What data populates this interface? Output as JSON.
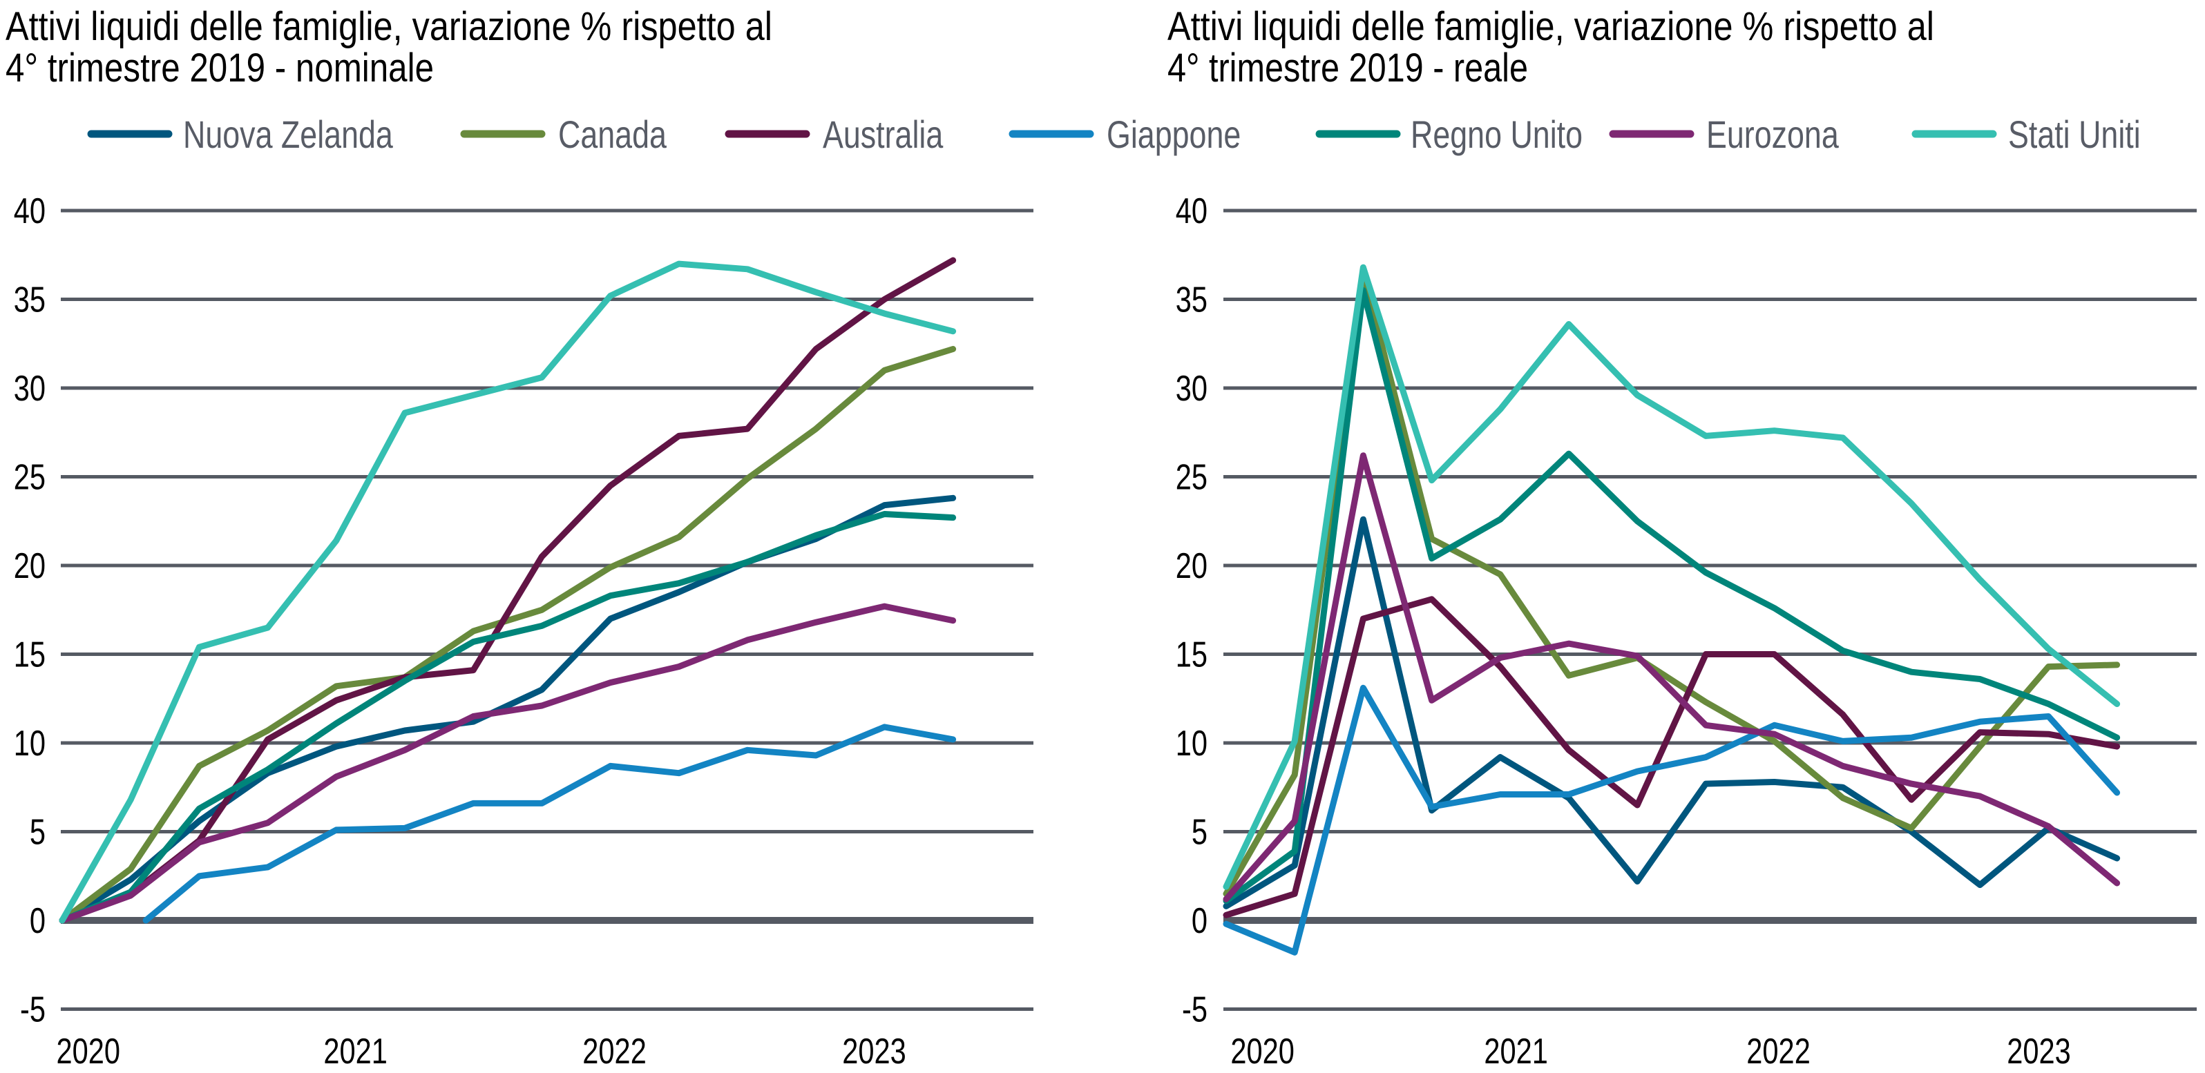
{
  "legend": [
    {
      "name": "Nuova Zelanda",
      "color": "#00567e"
    },
    {
      "name": "Canada",
      "color": "#688a3c"
    },
    {
      "name": "Australia",
      "color": "#611445"
    },
    {
      "name": "Giappone",
      "color": "#1384c3"
    },
    {
      "name": "Regno Unito",
      "color": "#00857a"
    },
    {
      "name": "Eurozona",
      "color": "#7e2873"
    },
    {
      "name": "Stati Uniti",
      "color": "#35bfb1"
    }
  ],
  "chart_data": [
    {
      "type": "line",
      "title_line1": "Attivi liquidi delle famiglie, variazione % rispetto al",
      "title_line2": "4° trimestre 2019 - nominale",
      "xlabel": "",
      "ylabel": "",
      "ylim": [
        -5,
        40
      ],
      "yticks": [
        "40",
        "35",
        "30",
        "25",
        "20",
        "15",
        "10",
        "5",
        "0",
        "-5"
      ],
      "xticks": [
        "2020",
        "2021",
        "2022",
        "2023"
      ],
      "grid": true,
      "legend_position": "top",
      "series": [
        {
          "name": "Nuova Zelanda",
          "values": [
            0,
            2.3,
            5.6,
            8.3,
            9.8,
            10.7,
            11.2,
            13.0,
            17.0,
            18.5,
            20.2,
            21.5,
            23.4,
            23.8
          ]
        },
        {
          "name": "Canada",
          "values": [
            0,
            2.9,
            8.7,
            10.7,
            13.2,
            13.7,
            16.3,
            17.5,
            19.9,
            21.6,
            24.9,
            27.7,
            31.0,
            32.2
          ]
        },
        {
          "name": "Australia",
          "values": [
            0,
            1.5,
            4.5,
            10.2,
            12.4,
            13.7,
            14.1,
            20.5,
            24.5,
            27.3,
            27.7,
            32.2,
            35.0,
            37.2
          ]
        },
        {
          "name": "Giappone",
          "values": [
            null,
            0,
            2.5,
            3.0,
            5.1,
            5.2,
            6.6,
            6.6,
            8.7,
            8.3,
            9.6,
            9.3,
            10.9,
            10.2
          ]
        },
        {
          "name": "Regno Unito",
          "values": [
            0,
            1.6,
            6.3,
            8.5,
            11.1,
            13.5,
            15.7,
            16.6,
            18.3,
            19.0,
            20.2,
            21.7,
            22.9,
            22.7
          ]
        },
        {
          "name": "Eurozona",
          "values": [
            0,
            1.4,
            4.4,
            5.5,
            8.1,
            9.6,
            11.5,
            12.1,
            13.4,
            14.3,
            15.8,
            16.8,
            17.7,
            16.9
          ]
        },
        {
          "name": "Stati Uniti",
          "values": [
            0,
            6.8,
            15.4,
            16.5,
            21.4,
            28.6,
            29.6,
            30.6,
            35.2,
            37.0,
            36.7,
            35.4,
            34.2,
            33.2
          ]
        }
      ]
    },
    {
      "type": "line",
      "title_line1": "Attivi liquidi delle famiglie, variazione % rispetto al",
      "title_line2": "4° trimestre 2019 - reale",
      "xlabel": "",
      "ylabel": "",
      "ylim": [
        -5,
        40
      ],
      "yticks": [
        "40",
        "35",
        "30",
        "25",
        "20",
        "15",
        "10",
        "5",
        "0",
        "-5"
      ],
      "xticks": [
        "2020",
        "2021",
        "2022",
        "2023"
      ],
      "grid": true,
      "legend_position": "top",
      "series": [
        {
          "name": "Nuova Zelanda",
          "values": [
            0.8,
            3.1,
            22.6,
            6.2,
            9.2,
            6.9,
            2.2,
            7.7,
            7.8,
            7.5,
            5.0,
            2.0,
            5.2,
            3.5
          ]
        },
        {
          "name": "Canada",
          "values": [
            1.5,
            8.2,
            36.5,
            21.5,
            19.5,
            13.8,
            14.8,
            12.3,
            10.1,
            6.9,
            5.2,
            9.8,
            14.3,
            14.4
          ]
        },
        {
          "name": "Australia",
          "values": [
            0.3,
            1.5,
            17.0,
            18.1,
            14.3,
            9.6,
            6.5,
            15.0,
            15.0,
            11.6,
            6.8,
            10.6,
            10.5,
            9.8
          ]
        },
        {
          "name": "Giappone",
          "values": [
            -0.2,
            -1.8,
            13.1,
            6.4,
            7.1,
            7.1,
            8.4,
            9.2,
            11.0,
            10.1,
            10.3,
            11.2,
            11.5,
            7.2
          ]
        },
        {
          "name": "Regno Unito",
          "values": [
            1.1,
            3.9,
            35.5,
            20.4,
            22.6,
            26.3,
            22.5,
            19.6,
            17.6,
            15.2,
            14.0,
            13.6,
            12.2,
            10.3
          ]
        },
        {
          "name": "Eurozona",
          "values": [
            1.2,
            5.6,
            26.2,
            12.4,
            14.8,
            15.6,
            14.9,
            11.0,
            10.5,
            8.7,
            7.7,
            7.0,
            5.3,
            2.1
          ]
        },
        {
          "name": "Stati Uniti",
          "values": [
            1.9,
            10.1,
            36.8,
            24.8,
            28.8,
            33.6,
            29.6,
            27.3,
            27.6,
            27.2,
            23.5,
            19.2,
            15.3,
            12.2
          ]
        }
      ]
    }
  ]
}
